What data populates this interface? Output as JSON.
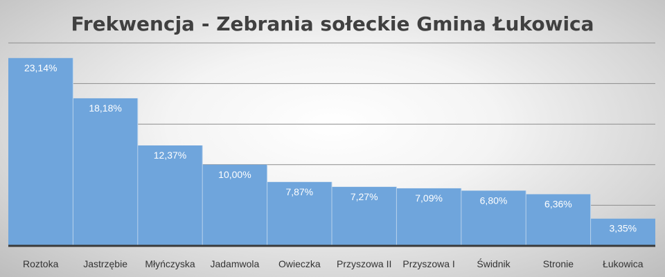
{
  "chart_data": {
    "type": "bar",
    "title": "Frekwencja - Zebrania sołeckie Gmina Łukowica",
    "xlabel": "",
    "ylabel": "",
    "categories": [
      "Roztoka",
      "Jastrzębie",
      "Młyńczyska",
      "Jadamwola",
      "Owieczka",
      "Przyszowa II",
      "Przyszowa I",
      "Świdnik",
      "Stronie",
      "Łukowica"
    ],
    "values": [
      23.14,
      18.18,
      12.37,
      10.0,
      7.87,
      7.27,
      7.09,
      6.8,
      6.36,
      3.35
    ],
    "value_labels": [
      "23,14%",
      "18,18%",
      "12,37%",
      "10,00%",
      "7,87%",
      "7,27%",
      "7,09%",
      "6,80%",
      "6,36%",
      "3,35%"
    ],
    "ylim": [
      0,
      25
    ],
    "y_grid_step": 5,
    "grid": true,
    "bar_color": "#6fa5dc",
    "legend": "none"
  }
}
